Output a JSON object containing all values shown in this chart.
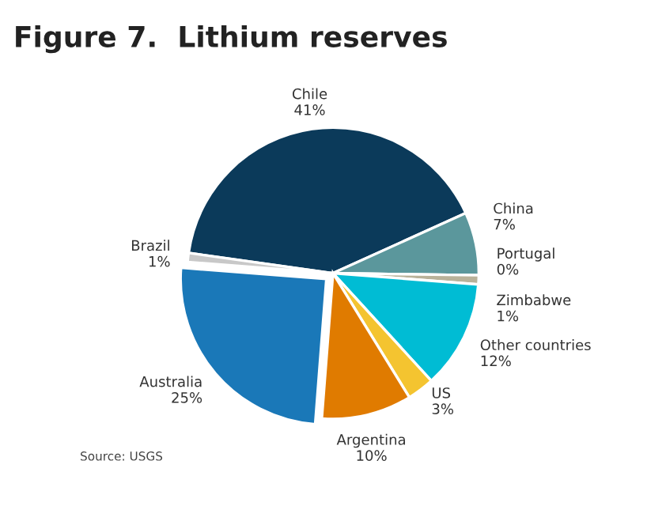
{
  "chart_data": {
    "type": "pie",
    "title": "Figure 7.  Lithium reserves",
    "categories": [
      "Chile",
      "China",
      "Portugal",
      "Zimbabwe",
      "Other countries",
      "US",
      "Argentina",
      "Australia",
      "Brazil"
    ],
    "values": [
      41,
      7,
      0,
      1,
      12,
      3,
      10,
      25,
      1
    ],
    "value_labels": [
      "41%",
      "7%",
      "0%",
      "1%",
      "12%",
      "3%",
      "10%",
      "25%",
      "1%"
    ],
    "colors": [
      "#0b3a5a",
      "#5b979c",
      "#9a9a9a",
      "#b9b29a",
      "#00bcd4",
      "#f4c430",
      "#e07b00",
      "#1a78b8",
      "#c8c8c8"
    ],
    "annotations": [
      "Source: USGS"
    ]
  }
}
